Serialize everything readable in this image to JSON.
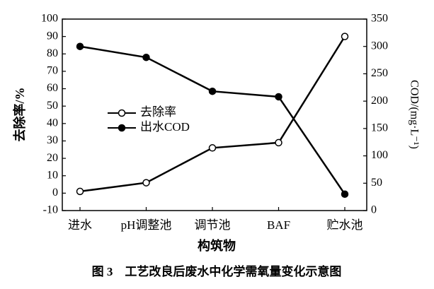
{
  "chart_data": {
    "type": "line",
    "x_label": "构筑物",
    "y_label": "去除率/%",
    "y2_label": "COD/(mg·L⁻¹)",
    "caption": "图 3　工艺改良后废水中化学需氧量变化示意图",
    "categories": [
      "进水",
      "pH调整池",
      "调节池",
      "BAF",
      "贮水池"
    ],
    "series": [
      {
        "name": "去除率",
        "color": "#000000",
        "marker_fill": "#ffffff",
        "values": [
          1,
          6,
          26,
          29,
          90
        ]
      },
      {
        "name": "出水COD",
        "color": "#000000",
        "marker_fill": "#000000",
        "axis": "y2",
        "values": [
          300,
          280,
          218,
          208,
          30
        ]
      }
    ],
    "ylim": [
      -10,
      100
    ],
    "yticks": [
      -10,
      0,
      10,
      20,
      30,
      40,
      50,
      60,
      70,
      80,
      90,
      100
    ],
    "y2lim": [
      0,
      350
    ],
    "y2ticks": [
      0,
      50,
      100,
      150,
      200,
      250,
      300,
      350
    ]
  }
}
